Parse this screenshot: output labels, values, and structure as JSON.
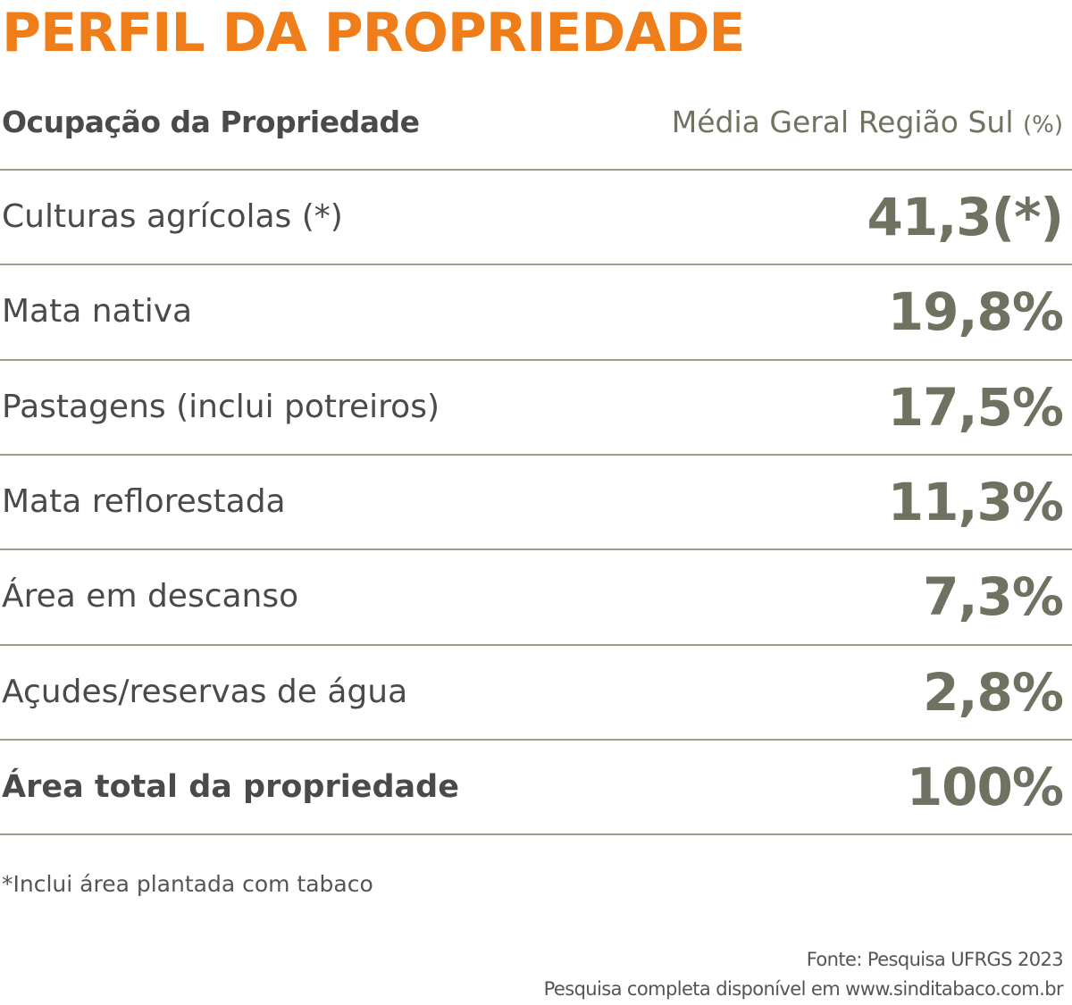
{
  "title": "PERFIL DA PROPRIEDADE",
  "table": {
    "header": [
      "Ocupação da Propriedade",
      "Média Geral Região Sul"
    ],
    "header_unit": "(%)",
    "rows": [
      [
        "Culturas agrícolas (*)",
        "41,3(*)"
      ],
      [
        "Mata nativa",
        "19,8%"
      ],
      [
        "Pastagens (inclui potreiros)",
        "17,5%"
      ],
      [
        "Mata reflorestada",
        "11,3%"
      ],
      [
        "Área em descanso",
        "7,3%"
      ],
      [
        "Açudes/reservas de água",
        "2,8%"
      ],
      [
        "Área total da propriedade",
        "100%"
      ]
    ]
  },
  "footnote": "*Inclui área plantada com tabaco",
  "source": [
    "Fonte: Pesquisa UFRGS 2023",
    "Pesquisa completa disponível em www.sinditabaco.com.br"
  ]
}
